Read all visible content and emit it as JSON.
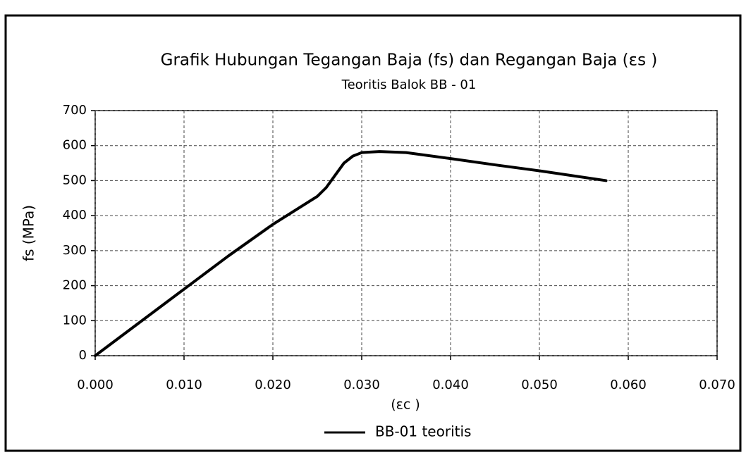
{
  "chart_data": {
    "type": "line",
    "title": "Grafik Hubungan Tegangan Baja (fs) dan Regangan  Baja (εs )",
    "subtitle": "Teoritis Balok BB - 01",
    "x_label": "(εc )",
    "y_label": "fs (MPa)",
    "x": [
      0,
      0.005,
      0.01,
      0.015,
      0.02,
      0.025,
      0.026,
      0.027,
      0.028,
      0.029,
      0.03,
      0.032,
      0.035,
      0.04,
      0.045,
      0.05,
      0.0575
    ],
    "series": [
      {
        "name": "BB-01 teoritis",
        "color": "#000000",
        "values": [
          0,
          95,
          190,
          285,
          375,
          455,
          480,
          515,
          550,
          570,
          580,
          583,
          580,
          563,
          545,
          528,
          500
        ]
      }
    ],
    "xlim": [
      0,
      0.07
    ],
    "xticks": [
      {
        "value": 0,
        "label": "0.000"
      },
      {
        "value": 0.01,
        "label": "0.010"
      },
      {
        "value": 0.02,
        "label": "0.020"
      },
      {
        "value": 0.03,
        "label": "0.030"
      },
      {
        "value": 0.04,
        "label": "0.040"
      },
      {
        "value": 0.05,
        "label": "0.050"
      },
      {
        "value": 0.06,
        "label": "0.060"
      },
      {
        "value": 0.07,
        "label": "0.070"
      }
    ],
    "ylim": [
      0,
      700
    ],
    "yticks": [
      0,
      100,
      200,
      300,
      400,
      500,
      600,
      700
    ],
    "grid": true,
    "legend": "bottom"
  }
}
